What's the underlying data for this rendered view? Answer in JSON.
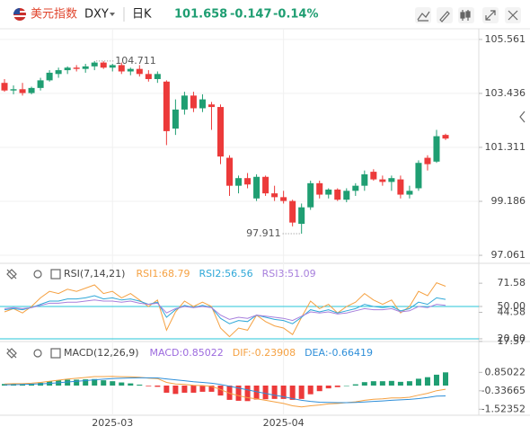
{
  "header": {
    "name": "美元指数",
    "symbol": "DXY",
    "period": "日K",
    "price": "101.658",
    "change": "-0.147",
    "change_pct": "-0.14%"
  },
  "chart_data": [
    {
      "type": "candlestick",
      "categories": [
        null,
        null,
        null,
        null,
        null,
        null,
        null,
        null,
        null,
        null,
        null,
        null,
        "2025-03",
        null,
        null,
        null,
        null,
        null,
        null,
        null,
        null,
        null,
        null,
        null,
        null,
        null,
        null,
        null,
        null,
        null,
        null,
        "2025-04",
        null,
        null,
        null,
        null,
        null,
        null,
        null,
        null,
        null,
        null,
        null,
        null,
        null,
        null,
        null,
        null,
        null,
        null
      ],
      "open": [
        103.85,
        103.55,
        103.6,
        103.45,
        103.65,
        103.95,
        104.2,
        104.35,
        104.45,
        104.4,
        104.5,
        104.65,
        104.45,
        104.55,
        104.3,
        104.4,
        104.2,
        104.0,
        103.9,
        102.05,
        102.8,
        103.35,
        102.85,
        103.0,
        102.9,
        100.9,
        99.8,
        100.1,
        99.3,
        100.15,
        99.5,
        99.35,
        99.2,
        98.3,
        98.95,
        99.9,
        99.45,
        99.65,
        99.25,
        99.6,
        99.8,
        100.35,
        100.05,
        99.95,
        100.05,
        99.45,
        99.7,
        100.9,
        100.75,
        101.8
      ],
      "high": [
        104.0,
        103.75,
        103.85,
        103.7,
        104.05,
        104.35,
        104.45,
        104.5,
        104.55,
        104.6,
        104.711,
        104.7,
        104.6,
        104.65,
        104.45,
        104.55,
        104.35,
        104.3,
        103.95,
        103.2,
        103.5,
        103.5,
        103.4,
        103.1,
        103.0,
        101.0,
        100.2,
        100.3,
        100.25,
        100.2,
        99.8,
        99.6,
        99.25,
        99.1,
        100.0,
        100.0,
        99.7,
        99.7,
        99.7,
        99.9,
        100.4,
        100.45,
        100.2,
        100.2,
        100.2,
        99.8,
        100.8,
        101.0,
        102.0,
        101.85
      ],
      "low": [
        103.5,
        103.4,
        103.35,
        103.4,
        103.55,
        103.9,
        104.05,
        104.2,
        104.3,
        104.25,
        104.35,
        104.4,
        104.3,
        104.2,
        104.15,
        104.1,
        103.9,
        103.85,
        101.4,
        101.8,
        102.6,
        102.7,
        102.7,
        102.0,
        100.65,
        99.4,
        99.5,
        99.7,
        99.2,
        99.4,
        99.2,
        99.1,
        98.2,
        97.911,
        98.85,
        99.3,
        99.3,
        99.2,
        99.15,
        99.4,
        99.6,
        100.0,
        99.8,
        99.6,
        99.3,
        99.3,
        99.6,
        100.4,
        100.7,
        101.6
      ],
      "close": [
        103.55,
        103.6,
        103.45,
        103.65,
        103.95,
        104.25,
        104.35,
        104.45,
        104.4,
        104.5,
        104.65,
        104.45,
        104.55,
        104.3,
        104.4,
        104.2,
        104.0,
        104.2,
        101.95,
        102.8,
        103.35,
        102.85,
        103.2,
        102.9,
        100.95,
        99.8,
        100.1,
        99.85,
        100.15,
        99.5,
        99.35,
        99.2,
        98.35,
        98.95,
        99.9,
        99.45,
        99.65,
        99.25,
        99.6,
        99.8,
        100.25,
        100.05,
        99.95,
        100.1,
        99.45,
        99.6,
        100.7,
        100.65,
        101.75,
        101.658
      ],
      "up_color": "#1f9e72",
      "down_color": "#ec3a3a",
      "high_label": "104.711",
      "low_label": "97.911",
      "ylim": [
        96.78,
        105.91
      ],
      "yticks": [
        105.561,
        103.436,
        101.311,
        99.186,
        97.061
      ],
      "grid": true
    },
    {
      "type": "line",
      "title": "RSI(7,14,21)",
      "series": [
        {
          "name": "RSI1:68.79",
          "color": "#f5a142",
          "values": [
            45,
            48,
            44,
            50,
            58,
            64,
            62,
            66,
            64,
            67,
            70,
            62,
            64,
            58,
            62,
            56,
            50,
            56,
            28,
            45,
            55,
            50,
            54,
            50,
            30,
            22,
            30,
            28,
            42,
            36,
            32,
            30,
            24,
            40,
            55,
            48,
            52,
            44,
            50,
            54,
            62,
            56,
            52,
            56,
            44,
            50,
            64,
            60,
            72,
            68.79
          ]
        },
        {
          "name": "RSI2:56.56",
          "color": "#2fa8d8",
          "values": [
            47,
            48,
            47,
            49,
            52,
            55,
            55,
            57,
            57,
            58,
            60,
            57,
            58,
            56,
            57,
            55,
            52,
            54,
            40,
            47,
            51,
            49,
            51,
            49,
            39,
            34,
            37,
            36,
            42,
            40,
            38,
            37,
            34,
            40,
            47,
            45,
            47,
            44,
            46,
            48,
            52,
            50,
            49,
            50,
            46,
            48,
            54,
            52,
            58,
            56.56
          ]
        },
        {
          "name": "RSI3:51.09",
          "color": "#a77fdc",
          "values": [
            48,
            49,
            48,
            49,
            51,
            53,
            53,
            54,
            54,
            55,
            56,
            55,
            55,
            54,
            55,
            53,
            52,
            53,
            44,
            48,
            50,
            49,
            50,
            49,
            42,
            38,
            40,
            39,
            42,
            41,
            40,
            39,
            37,
            41,
            45,
            44,
            45,
            43,
            44,
            46,
            48,
            47,
            47,
            48,
            45,
            46,
            50,
            49,
            52,
            51.09
          ]
        }
      ],
      "ref_lines": [
        50,
        20
      ],
      "ref_color": "#26c6da",
      "ylim": [
        18.3,
        86.7
      ],
      "yticks": [
        71.58,
        {
          "value": 50,
          "label": "50.00"
        },
        44.58,
        {
          "value": 20,
          "label": "20.00"
        },
        17.57
      ]
    },
    {
      "type": "macd",
      "title": "MACD(12,26,9)",
      "name": "MACD:0.85022",
      "color": "#9c6ade",
      "values": [
        0.1,
        0.12,
        0.1,
        0.12,
        0.18,
        0.28,
        0.34,
        0.38,
        0.38,
        0.4,
        0.42,
        0.34,
        0.28,
        0.2,
        0.14,
        0.06,
        -0.04,
        -0.08,
        -0.46,
        -0.54,
        -0.46,
        -0.46,
        -0.4,
        -0.4,
        -0.64,
        -0.92,
        -0.98,
        -1.0,
        -0.9,
        -0.88,
        -0.86,
        -0.86,
        -0.92,
        -0.86,
        -0.56,
        -0.36,
        -0.18,
        -0.1,
        0.0,
        0.08,
        0.22,
        0.28,
        0.28,
        0.3,
        0.24,
        0.28,
        0.44,
        0.54,
        0.7,
        0.85022
      ],
      "up_color": "#1f9e72",
      "down_color": "#ec3a3a",
      "series": [
        {
          "name": "DIF:-0.23908",
          "color": "#f5a142",
          "values": [
            0.1,
            0.12,
            0.12,
            0.15,
            0.2,
            0.28,
            0.35,
            0.42,
            0.47,
            0.52,
            0.58,
            0.58,
            0.59,
            0.57,
            0.56,
            0.53,
            0.48,
            0.45,
            0.2,
            0.1,
            0.08,
            0.02,
            0.0,
            -0.05,
            -0.25,
            -0.5,
            -0.65,
            -0.78,
            -0.85,
            -0.95,
            -1.05,
            -1.15,
            -1.3,
            -1.38,
            -1.3,
            -1.25,
            -1.18,
            -1.15,
            -1.1,
            -1.05,
            -0.95,
            -0.88,
            -0.85,
            -0.8,
            -0.8,
            -0.75,
            -0.62,
            -0.5,
            -0.33,
            -0.23908
          ]
        },
        {
          "name": "DEA:-0.66419",
          "color": "#2f8fd9",
          "values": [
            0.05,
            0.06,
            0.07,
            0.09,
            0.11,
            0.14,
            0.18,
            0.23,
            0.28,
            0.32,
            0.37,
            0.41,
            0.45,
            0.47,
            0.49,
            0.5,
            0.5,
            0.49,
            0.43,
            0.37,
            0.31,
            0.25,
            0.2,
            0.15,
            0.07,
            -0.04,
            -0.16,
            -0.28,
            -0.4,
            -0.51,
            -0.62,
            -0.72,
            -0.84,
            -0.95,
            -1.02,
            -1.07,
            -1.09,
            -1.1,
            -1.1,
            -1.09,
            -1.06,
            -1.02,
            -0.99,
            -0.95,
            -0.92,
            -0.89,
            -0.84,
            -0.77,
            -0.68,
            -0.66419
          ]
        }
      ],
      "ylim": [
        -1.91,
        2.72
      ],
      "yticks": [
        0.85022,
        -0.33665,
        -1.52352
      ]
    }
  ]
}
